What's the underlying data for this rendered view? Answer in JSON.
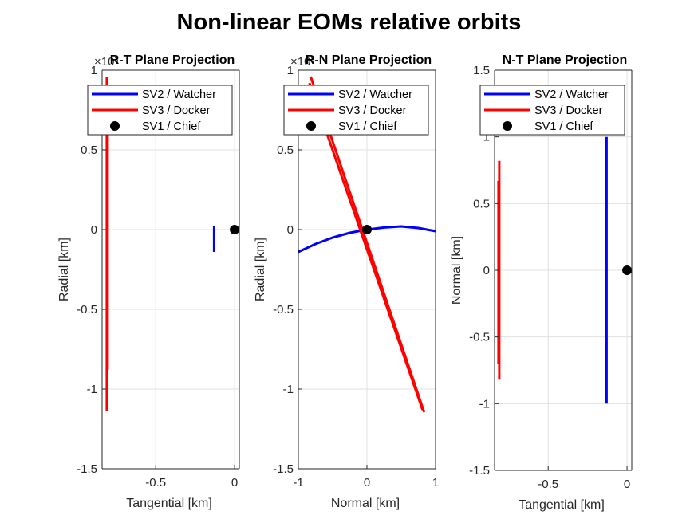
{
  "figure": {
    "title": "Non-linear EOMs relative orbits"
  },
  "colors": {
    "watcher": "#0000ff",
    "docker": "#ff0000",
    "chief": "#000000",
    "grid": "#e0e0e0",
    "axis": "#262626"
  },
  "chart_data": [
    {
      "type": "line",
      "title": "R-T Plane Projection",
      "xlabel": "Tangential [km]",
      "ylabel": "Radial [km]",
      "xlim": [
        -0.84,
        0.03
      ],
      "ylim": [
        -1.5,
        1
      ],
      "xticks": [
        -0.5,
        0
      ],
      "xticklabels": [
        "-0.5",
        "0"
      ],
      "yticks": [
        -1.5,
        -1,
        -0.5,
        0,
        0.5,
        1
      ],
      "yticklabels": [
        "-1.5",
        "-1",
        "-0.5",
        "0",
        "0.5",
        "1"
      ],
      "exponent_label": "×10³",
      "grid": true,
      "legend": {
        "position": "top",
        "entries": [
          "SV2 / Watcher",
          "SV3 / Docker",
          "SV1 / Chief"
        ]
      },
      "series": [
        {
          "name": "SV2 / Watcher",
          "marker": "line",
          "segments": [
            [
              [
                -0.13,
                0.02
              ],
              [
                -0.13,
                -0.14
              ]
            ]
          ]
        },
        {
          "name": "SV3 / Docker",
          "marker": "line",
          "segments": [
            [
              [
                -0.81,
                0.96
              ],
              [
                -0.81,
                -1.14
              ]
            ],
            [
              [
                -0.805,
                0.9
              ],
              [
                -0.805,
                -0.88
              ]
            ]
          ]
        },
        {
          "name": "SV1 / Chief",
          "marker": "dot",
          "points": [
            [
              0,
              0
            ]
          ]
        }
      ]
    },
    {
      "type": "line",
      "title": "R-N Plane Projection",
      "xlabel": "Normal [km]",
      "ylabel": "Radial [km]",
      "xlim": [
        -1,
        1
      ],
      "ylim": [
        -1.5,
        1
      ],
      "xticks": [
        -1,
        0,
        1
      ],
      "xticklabels": [
        "-1",
        "0",
        "1"
      ],
      "yticks": [
        -1.5,
        -1,
        -0.5,
        0,
        0.5,
        1
      ],
      "yticklabels": [
        "-1.5",
        "-1",
        "-0.5",
        "0",
        "0.5",
        "1"
      ],
      "exponent_label": "×10³",
      "grid": true,
      "legend": {
        "position": "top",
        "entries": [
          "SV2 / Watcher",
          "SV3 / Docker",
          "SV1 / Chief"
        ]
      },
      "series": [
        {
          "name": "SV2 / Watcher",
          "marker": "line",
          "segments": [
            [
              [
                -1,
                -0.14
              ],
              [
                -0.75,
                -0.09
              ],
              [
                -0.5,
                -0.05
              ],
              [
                -0.25,
                -0.02
              ],
              [
                0,
                0
              ],
              [
                0.25,
                0.013
              ],
              [
                0.5,
                0.02
              ],
              [
                0.75,
                0.01
              ],
              [
                1,
                -0.01
              ]
            ]
          ]
        },
        {
          "name": "SV3 / Docker",
          "marker": "line",
          "segments": [
            [
              [
                -0.82,
                0.96
              ],
              [
                0.83,
                -1.14
              ],
              [
                -0.82,
                0.96
              ]
            ],
            [
              [
                -0.84,
                0.92
              ],
              [
                0.81,
                -1.13
              ]
            ]
          ]
        },
        {
          "name": "SV1 / Chief",
          "marker": "dot",
          "points": [
            [
              0,
              0
            ]
          ]
        }
      ]
    },
    {
      "type": "line",
      "title": "N-T Plane Projection",
      "xlabel": "Tangential [km]",
      "ylabel": "Normal [km]",
      "xlim": [
        -0.84,
        0.03
      ],
      "ylim": [
        -1.5,
        1.5
      ],
      "xticks": [
        -0.5,
        0
      ],
      "xticklabels": [
        "-0.5",
        "0"
      ],
      "yticks": [
        -1.5,
        -1,
        -0.5,
        0,
        0.5,
        1,
        1.5
      ],
      "yticklabels": [
        "-1.5",
        "-1",
        "-0.5",
        "0",
        "0.5",
        "1",
        "1.5"
      ],
      "grid": true,
      "legend": {
        "position": "top",
        "entries": [
          "SV2 / Watcher",
          "SV3 / Docker",
          "SV1 / Chief"
        ]
      },
      "series": [
        {
          "name": "SV2 / Watcher",
          "marker": "line",
          "segments": [
            [
              [
                -0.13,
                1.0
              ],
              [
                -0.13,
                -1.0
              ]
            ]
          ]
        },
        {
          "name": "SV3 / Docker",
          "marker": "line",
          "segments": [
            [
              [
                -0.81,
                0.82
              ],
              [
                -0.81,
                -0.82
              ]
            ],
            [
              [
                -0.815,
                0.67
              ],
              [
                -0.815,
                -0.7
              ]
            ]
          ]
        },
        {
          "name": "SV1 / Chief",
          "marker": "dot",
          "points": [
            [
              0,
              0
            ]
          ]
        }
      ]
    }
  ]
}
